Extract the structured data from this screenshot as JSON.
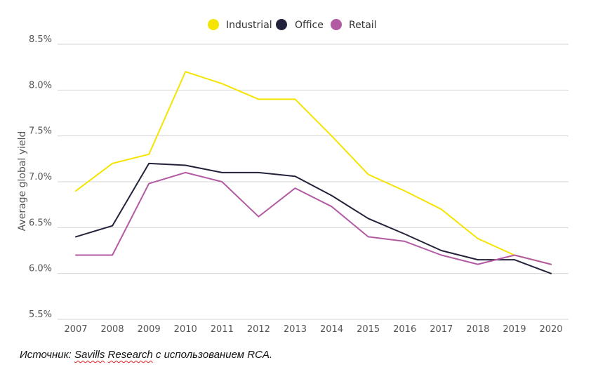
{
  "chart_data": {
    "type": "line",
    "title": "",
    "xlabel": "",
    "ylabel": "Average global yield",
    "ylim": [
      5.5,
      8.5
    ],
    "grid": true,
    "legend_position": "top-center",
    "x": [
      "2007",
      "2008",
      "2009",
      "2010",
      "2011",
      "2012",
      "2013",
      "2014",
      "2015",
      "2016",
      "2017",
      "2018",
      "2019",
      "2020"
    ],
    "y_ticks": [
      {
        "value": 5.5,
        "label": "5.5%"
      },
      {
        "value": 6.0,
        "label": "6.0%"
      },
      {
        "value": 6.5,
        "label": "6.5%"
      },
      {
        "value": 7.0,
        "label": "7.0%"
      },
      {
        "value": 7.5,
        "label": "7.5%"
      },
      {
        "value": 8.0,
        "label": "8.0%"
      },
      {
        "value": 8.5,
        "label": "8.5%"
      }
    ],
    "series": [
      {
        "name": "Industrial",
        "color": "#f5e400",
        "values": [
          6.9,
          7.2,
          7.3,
          8.2,
          8.07,
          7.9,
          7.9,
          7.5,
          7.08,
          6.9,
          6.7,
          6.38,
          6.2,
          6.1
        ]
      },
      {
        "name": "Office",
        "color": "#22223a",
        "values": [
          6.4,
          6.52,
          7.2,
          7.18,
          7.1,
          7.1,
          7.06,
          6.85,
          6.6,
          6.43,
          6.25,
          6.15,
          6.15,
          6.0
        ]
      },
      {
        "name": "Retail",
        "color": "#b25ba3",
        "values": [
          6.2,
          6.2,
          6.98,
          7.1,
          7.0,
          6.62,
          6.93,
          6.73,
          6.4,
          6.35,
          6.2,
          6.1,
          6.2,
          6.1
        ]
      }
    ]
  },
  "source": {
    "prefix": "Источник: ",
    "link1": "Savills",
    "space": " ",
    "link2": "Research",
    "suffix": " с использованием RCA."
  }
}
